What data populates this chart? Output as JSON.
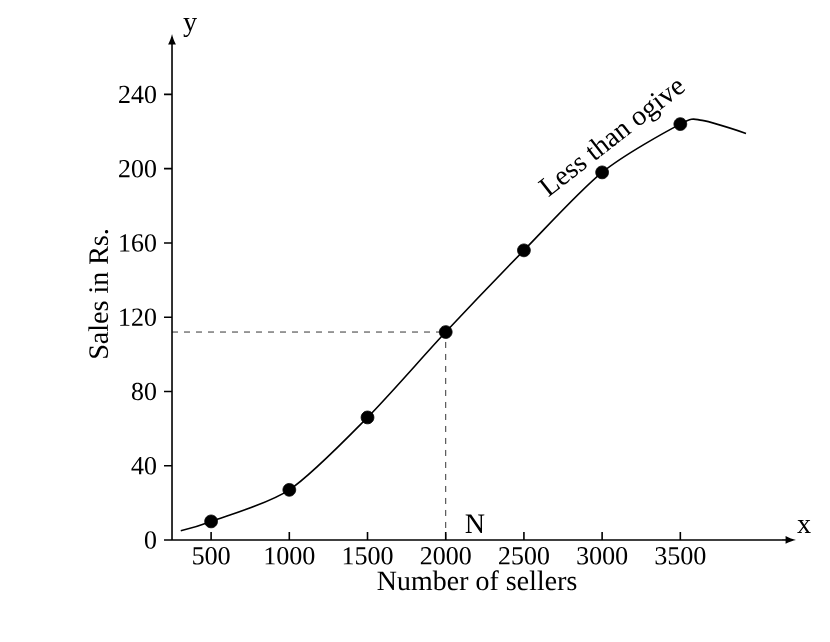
{
  "chart_data": {
    "type": "scatter",
    "xlabel": "Number of sellers",
    "ylabel": "Sales in Rs.",
    "xlim": [
      250,
      4150
    ],
    "ylim": [
      0,
      265
    ],
    "xticks": [
      500,
      1000,
      1500,
      2000,
      2500,
      3000,
      3500
    ],
    "yticks": [
      0,
      40,
      80,
      120,
      160,
      200,
      240
    ],
    "series": [
      {
        "type": "line",
        "name": "Less than ogive",
        "color": "#000000",
        "marker": "none",
        "x": [
          306,
          500,
          1000,
          1500,
          2000,
          2500,
          3000,
          3500,
          3640,
          3920
        ],
        "values": [
          5,
          10,
          27,
          66,
          112,
          156,
          198,
          224,
          226,
          219
        ]
      },
      {
        "color": "#000000",
        "marker": "circle",
        "x": [
          500,
          1000,
          1500,
          2000,
          2500,
          3000,
          3500
        ],
        "values": [
          10,
          27,
          66,
          112,
          156,
          198,
          224
        ]
      }
    ],
    "ref_lines": [
      {
        "axis": "y",
        "value": 112,
        "line_style": "dashed"
      },
      {
        "axis": "x",
        "value": 2000,
        "line_style": "dashed"
      }
    ],
    "annotations": [
      "N",
      "y",
      "x"
    ]
  }
}
